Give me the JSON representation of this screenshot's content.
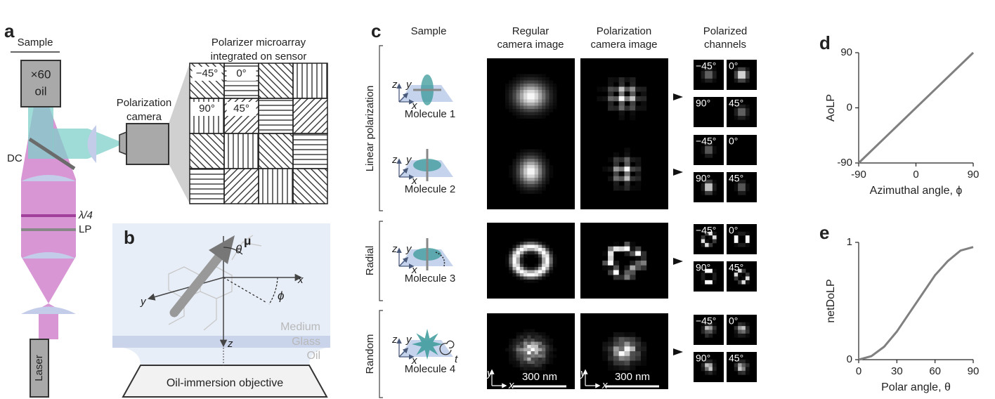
{
  "panel_a": {
    "label": "a",
    "sample": "Sample",
    "objective": [
      "×60",
      "oil"
    ],
    "dc": "DC",
    "waveplate": "λ/4",
    "polarizer": "LP",
    "laser": "Laser",
    "camera": [
      "Polarization",
      "camera"
    ],
    "microarray_title": [
      "Polarizer microarray",
      "integrated on sensor"
    ],
    "microarray_labels": [
      "−45°",
      "0°",
      "90°",
      "45°"
    ]
  },
  "panel_b": {
    "label": "b",
    "theta": "θ",
    "mu": "μ",
    "phi": "ϕ",
    "axes": [
      "x",
      "y",
      "z"
    ],
    "layers": [
      "Medium",
      "Glass",
      "Oil"
    ],
    "objective": "Oil-immersion objective"
  },
  "panel_c": {
    "label": "c",
    "headers": [
      "Sample",
      [
        "Regular",
        "camera image"
      ],
      [
        "Polarization",
        "camera image"
      ],
      [
        "Polarized",
        "channels"
      ]
    ],
    "groups": [
      "Linear polarization",
      "Radial",
      "Random"
    ],
    "molecules": [
      "Molecule 1",
      "Molecule 2",
      "Molecule 3",
      "Molecule 4"
    ],
    "sample_axes": [
      "z",
      "y",
      "x"
    ],
    "time": "t",
    "image_axes": [
      "y",
      "x"
    ],
    "scale_bar": "300 nm",
    "channel_labels": [
      "−45°",
      "0°",
      "90°",
      "45°"
    ]
  },
  "chart_data": [
    {
      "type": "line",
      "panel_label": "d",
      "xlabel": "Azimuthal angle, ϕ",
      "ylabel": "AoLP",
      "x": [
        -90,
        90
      ],
      "values": [
        -90,
        90
      ],
      "color": "#808080",
      "xlim": [
        -90,
        90
      ],
      "ylim": [
        -90,
        90
      ],
      "xticks": [
        -90,
        0,
        90
      ],
      "yticks": [
        -90,
        0,
        90
      ]
    },
    {
      "type": "line",
      "panel_label": "e",
      "xlabel": "Polar angle, θ",
      "ylabel": "netDoLP",
      "x": [
        0,
        10,
        20,
        30,
        40,
        50,
        60,
        70,
        80,
        90
      ],
      "values": [
        0,
        0.03,
        0.11,
        0.24,
        0.4,
        0.56,
        0.72,
        0.84,
        0.93,
        0.96
      ],
      "color": "#808080",
      "xlim": [
        0,
        90
      ],
      "ylim": [
        0,
        1
      ],
      "xticks": [
        0,
        30,
        60,
        90
      ],
      "yticks": [
        0,
        1
      ]
    }
  ]
}
